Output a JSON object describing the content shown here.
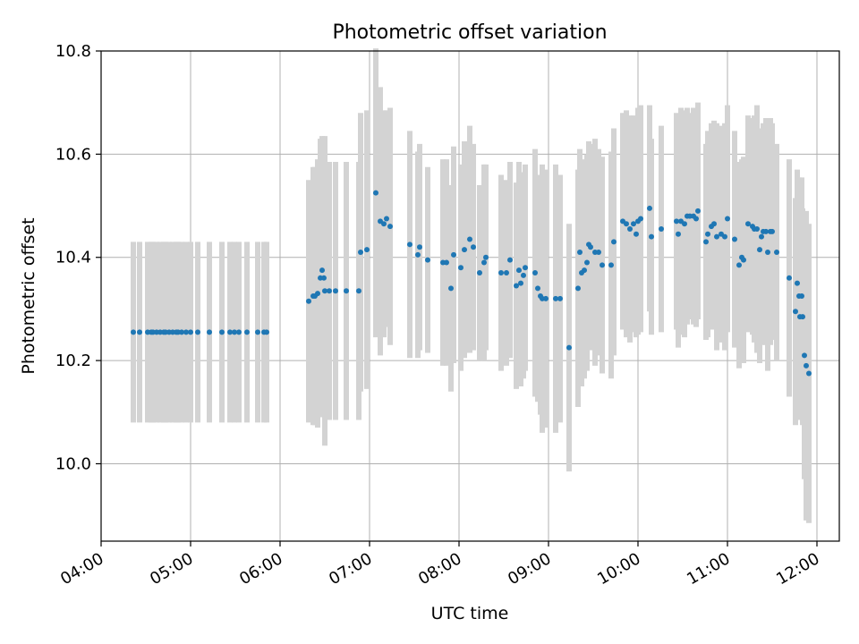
{
  "chart_data": {
    "type": "scatter",
    "title": "Photometric offset variation",
    "xlabel": "UTC time",
    "ylabel": "Photometric offset",
    "x_unit": "hours UTC",
    "xlim": [
      4.0,
      12.25
    ],
    "ylim": [
      9.85,
      10.8
    ],
    "xticks": [
      {
        "value": 4,
        "label": "04:00"
      },
      {
        "value": 5,
        "label": "05:00"
      },
      {
        "value": 6,
        "label": "06:00"
      },
      {
        "value": 7,
        "label": "07:00"
      },
      {
        "value": 8,
        "label": "08:00"
      },
      {
        "value": 9,
        "label": "09:00"
      },
      {
        "value": 10,
        "label": "10:00"
      },
      {
        "value": 11,
        "label": "11:00"
      },
      {
        "value": 12,
        "label": "12:00"
      }
    ],
    "yticks": [
      {
        "value": 10.0,
        "label": "10.0"
      },
      {
        "value": 10.2,
        "label": "10.2"
      },
      {
        "value": 10.4,
        "label": "10.4"
      },
      {
        "value": 10.6,
        "label": "10.6"
      },
      {
        "value": 10.8,
        "label": "10.8"
      }
    ],
    "grid": true,
    "legend": "none",
    "colors": {
      "points": "#1f77b4",
      "errorbars": "#d3d3d3",
      "grid": "#b0b0b0"
    },
    "series": [
      {
        "points": [
          [
            4.36,
            10.255,
            0.175
          ],
          [
            4.43,
            10.255,
            0.175
          ],
          [
            4.52,
            10.255,
            0.175
          ],
          [
            4.56,
            10.255,
            0.175
          ],
          [
            4.58,
            10.255,
            0.175
          ],
          [
            4.62,
            10.255,
            0.175
          ],
          [
            4.66,
            10.255,
            0.175
          ],
          [
            4.7,
            10.255,
            0.175
          ],
          [
            4.72,
            10.255,
            0.175
          ],
          [
            4.76,
            10.255,
            0.175
          ],
          [
            4.8,
            10.255,
            0.175
          ],
          [
            4.84,
            10.255,
            0.175
          ],
          [
            4.86,
            10.255,
            0.175
          ],
          [
            4.9,
            10.255,
            0.175
          ],
          [
            4.95,
            10.255,
            0.175
          ],
          [
            5.0,
            10.255,
            0.175
          ],
          [
            5.08,
            10.255,
            0.175
          ],
          [
            5.21,
            10.255,
            0.175
          ],
          [
            5.35,
            10.255,
            0.175
          ],
          [
            5.44,
            10.255,
            0.175
          ],
          [
            5.49,
            10.255,
            0.175
          ],
          [
            5.54,
            10.255,
            0.175
          ],
          [
            5.63,
            10.255,
            0.175
          ],
          [
            5.75,
            10.255,
            0.175
          ],
          [
            5.82,
            10.255,
            0.175
          ],
          [
            5.85,
            10.255,
            0.175
          ],
          [
            6.32,
            10.315,
            0.235
          ],
          [
            6.37,
            10.325,
            0.25
          ],
          [
            6.39,
            10.325,
            0.25
          ],
          [
            6.42,
            10.33,
            0.26
          ],
          [
            6.45,
            10.36,
            0.27
          ],
          [
            6.47,
            10.375,
            0.26
          ],
          [
            6.49,
            10.36,
            0.27
          ],
          [
            6.5,
            10.335,
            0.3
          ],
          [
            6.55,
            10.335,
            0.25
          ],
          [
            6.62,
            10.335,
            0.25
          ],
          [
            6.74,
            10.335,
            0.25
          ],
          [
            6.88,
            10.335,
            0.25
          ],
          [
            6.9,
            10.41,
            0.27
          ],
          [
            6.97,
            10.415,
            0.27
          ],
          [
            7.07,
            10.525,
            0.28
          ],
          [
            7.12,
            10.47,
            0.26
          ],
          [
            7.16,
            10.465,
            0.22
          ],
          [
            7.19,
            10.475,
            0.21
          ],
          [
            7.23,
            10.46,
            0.23
          ],
          [
            7.45,
            10.425,
            0.22
          ],
          [
            7.54,
            10.405,
            0.2
          ],
          [
            7.56,
            10.42,
            0.2
          ],
          [
            7.65,
            10.395,
            0.18
          ],
          [
            7.82,
            10.39,
            0.2
          ],
          [
            7.86,
            10.39,
            0.2
          ],
          [
            7.91,
            10.34,
            0.2
          ],
          [
            7.94,
            10.405,
            0.21
          ],
          [
            8.02,
            10.38,
            0.2
          ],
          [
            8.06,
            10.415,
            0.21
          ],
          [
            8.12,
            10.435,
            0.22
          ],
          [
            8.16,
            10.42,
            0.2
          ],
          [
            8.23,
            10.37,
            0.17
          ],
          [
            8.28,
            10.39,
            0.19
          ],
          [
            8.3,
            10.4,
            0.18
          ],
          [
            8.47,
            10.37,
            0.19
          ],
          [
            8.53,
            10.37,
            0.18
          ],
          [
            8.57,
            10.395,
            0.19
          ],
          [
            8.64,
            10.345,
            0.2
          ],
          [
            8.67,
            10.375,
            0.21
          ],
          [
            8.69,
            10.35,
            0.2
          ],
          [
            8.72,
            10.365,
            0.2
          ],
          [
            8.74,
            10.38,
            0.2
          ],
          [
            8.85,
            10.37,
            0.24
          ],
          [
            8.88,
            10.34,
            0.22
          ],
          [
            8.91,
            10.325,
            0.23
          ],
          [
            8.93,
            10.32,
            0.26
          ],
          [
            8.97,
            10.32,
            0.25
          ],
          [
            9.08,
            10.32,
            0.26
          ],
          [
            9.13,
            10.32,
            0.24
          ],
          [
            9.23,
            10.225,
            0.24
          ],
          [
            9.33,
            10.34,
            0.23
          ],
          [
            9.35,
            10.41,
            0.2
          ],
          [
            9.37,
            10.37,
            0.22
          ],
          [
            9.4,
            10.375,
            0.21
          ],
          [
            9.43,
            10.39,
            0.21
          ],
          [
            9.45,
            10.425,
            0.2
          ],
          [
            9.47,
            10.42,
            0.2
          ],
          [
            9.52,
            10.41,
            0.22
          ],
          [
            9.56,
            10.41,
            0.2
          ],
          [
            9.6,
            10.385,
            0.21
          ],
          [
            9.7,
            10.385,
            0.22
          ],
          [
            9.73,
            10.43,
            0.22
          ],
          [
            9.83,
            10.47,
            0.21
          ],
          [
            9.87,
            10.465,
            0.22
          ],
          [
            9.91,
            10.455,
            0.22
          ],
          [
            9.95,
            10.465,
            0.21
          ],
          [
            9.98,
            10.445,
            0.2
          ],
          [
            10.0,
            10.47,
            0.22
          ],
          [
            10.03,
            10.475,
            0.22
          ],
          [
            10.13,
            10.495,
            0.2
          ],
          [
            10.15,
            10.44,
            0.19
          ],
          [
            10.26,
            10.455,
            0.2
          ],
          [
            10.43,
            10.47,
            0.21
          ],
          [
            10.45,
            10.445,
            0.22
          ],
          [
            10.48,
            10.47,
            0.22
          ],
          [
            10.52,
            10.465,
            0.22
          ],
          [
            10.55,
            10.48,
            0.21
          ],
          [
            10.58,
            10.48,
            0.2
          ],
          [
            10.62,
            10.48,
            0.21
          ],
          [
            10.65,
            10.475,
            0.21
          ],
          [
            10.67,
            10.49,
            0.21
          ],
          [
            10.76,
            10.43,
            0.19
          ],
          [
            10.78,
            10.445,
            0.2
          ],
          [
            10.82,
            10.46,
            0.2
          ],
          [
            10.85,
            10.465,
            0.2
          ],
          [
            10.88,
            10.44,
            0.22
          ],
          [
            10.93,
            10.445,
            0.21
          ],
          [
            10.97,
            10.44,
            0.22
          ],
          [
            11.0,
            10.475,
            0.22
          ],
          [
            11.08,
            10.435,
            0.21
          ],
          [
            11.13,
            10.385,
            0.2
          ],
          [
            11.16,
            10.4,
            0.19
          ],
          [
            11.18,
            10.395,
            0.2
          ],
          [
            11.23,
            10.465,
            0.21
          ],
          [
            11.28,
            10.46,
            0.21
          ],
          [
            11.3,
            10.455,
            0.22
          ],
          [
            11.33,
            10.455,
            0.24
          ],
          [
            11.36,
            10.415,
            0.22
          ],
          [
            11.38,
            10.44,
            0.21
          ],
          [
            11.4,
            10.45,
            0.21
          ],
          [
            11.43,
            10.45,
            0.22
          ],
          [
            11.45,
            10.41,
            0.23
          ],
          [
            11.48,
            10.45,
            0.22
          ],
          [
            11.5,
            10.45,
            0.21
          ],
          [
            11.55,
            10.41,
            0.21
          ],
          [
            11.69,
            10.36,
            0.23
          ],
          [
            11.76,
            10.295,
            0.22
          ],
          [
            11.78,
            10.35,
            0.22
          ],
          [
            11.8,
            10.325,
            0.23
          ],
          [
            11.81,
            10.285,
            0.2
          ],
          [
            11.83,
            10.325,
            0.23
          ],
          [
            11.84,
            10.285,
            0.21
          ],
          [
            11.86,
            10.21,
            0.24
          ],
          [
            11.88,
            10.19,
            0.3
          ],
          [
            11.91,
            10.175,
            0.29
          ]
        ]
      }
    ]
  }
}
